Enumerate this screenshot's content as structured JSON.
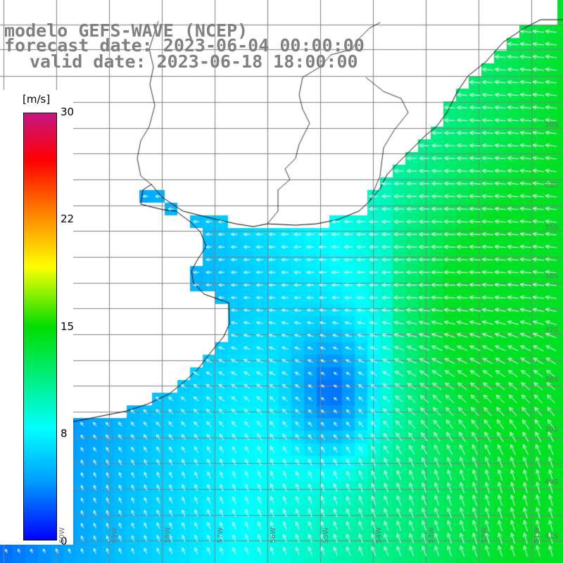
{
  "title": {
    "line1": "modelo GEFS-WAVE (NCEP)",
    "line2": "forecast date: 2023-06-04 00:00:00",
    "line3": "valid date: 2023-06-18 18:00:00"
  },
  "colorbar": {
    "unit": "[m/s]",
    "ticks": [
      "30",
      "22",
      "15",
      "8",
      "0"
    ],
    "colors": [
      "#0000ff",
      "#00a0ff",
      "#00ffff",
      "#00dd00",
      "#ffff00",
      "#ff8800",
      "#ff0000",
      "#c71585"
    ]
  },
  "grid": {
    "lat_labels": [
      "30S",
      "33S",
      "35S",
      "36S",
      "37S",
      "38S",
      "39S",
      "40S",
      "41S"
    ],
    "lon_labels": [
      "60W",
      "59W",
      "58W",
      "57W",
      "56W",
      "55W",
      "54W",
      "53W",
      "52W",
      "51W"
    ]
  },
  "colors": {
    "land": "#ffffff",
    "grid": "#808080",
    "coast": "#000000",
    "arrow": "#ffffff",
    "title": "#808080"
  }
}
